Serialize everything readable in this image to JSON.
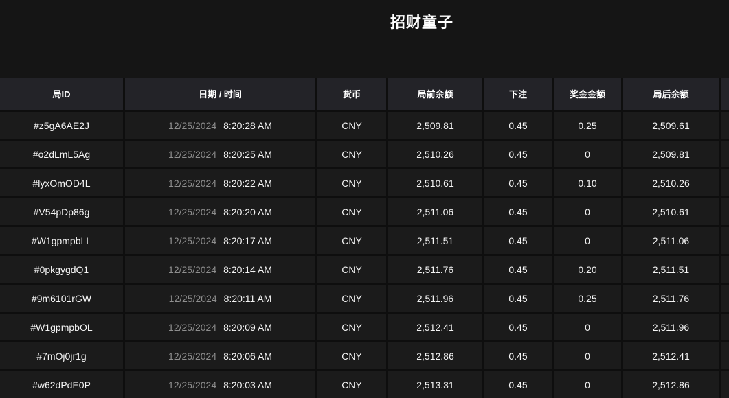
{
  "page": {
    "title": "招财童子"
  },
  "colors": {
    "page_background": "#151515",
    "header_cell_background": "#232328",
    "row_cell_background": "#1b1b1b",
    "cell_border": "#0e0e0e",
    "text_primary": "#f5f5f5",
    "text_date_muted": "#8f8f8f"
  },
  "table": {
    "headers": [
      {
        "label": "局ID"
      },
      {
        "label": "日期 / 时间"
      },
      {
        "label": "货币"
      },
      {
        "label": "局前余额"
      },
      {
        "label": "下注"
      },
      {
        "label": "奖金金额"
      },
      {
        "label": "局后余额"
      },
      {
        "label": ""
      }
    ],
    "rows": [
      {
        "id": "#z5gA6AE2J",
        "date": "12/25/2024",
        "time": "8:20:28 AM",
        "currency": "CNY",
        "balance_before": "2,509.81",
        "bet": "0.45",
        "prize": "0.25",
        "balance_after": "2,509.61"
      },
      {
        "id": "#o2dLmL5Ag",
        "date": "12/25/2024",
        "time": "8:20:25 AM",
        "currency": "CNY",
        "balance_before": "2,510.26",
        "bet": "0.45",
        "prize": "0",
        "balance_after": "2,509.81"
      },
      {
        "id": "#lyxOmOD4L",
        "date": "12/25/2024",
        "time": "8:20:22 AM",
        "currency": "CNY",
        "balance_before": "2,510.61",
        "bet": "0.45",
        "prize": "0.10",
        "balance_after": "2,510.26"
      },
      {
        "id": "#V54pDp86g",
        "date": "12/25/2024",
        "time": "8:20:20 AM",
        "currency": "CNY",
        "balance_before": "2,511.06",
        "bet": "0.45",
        "prize": "0",
        "balance_after": "2,510.61"
      },
      {
        "id": "#W1gpmpbLL",
        "date": "12/25/2024",
        "time": "8:20:17 AM",
        "currency": "CNY",
        "balance_before": "2,511.51",
        "bet": "0.45",
        "prize": "0",
        "balance_after": "2,511.06"
      },
      {
        "id": "#0pkgygdQ1",
        "date": "12/25/2024",
        "time": "8:20:14 AM",
        "currency": "CNY",
        "balance_before": "2,511.76",
        "bet": "0.45",
        "prize": "0.20",
        "balance_after": "2,511.51"
      },
      {
        "id": "#9m6101rGW",
        "date": "12/25/2024",
        "time": "8:20:11 AM",
        "currency": "CNY",
        "balance_before": "2,511.96",
        "bet": "0.45",
        "prize": "0.25",
        "balance_after": "2,511.76"
      },
      {
        "id": "#W1gpmpbOL",
        "date": "12/25/2024",
        "time": "8:20:09 AM",
        "currency": "CNY",
        "balance_before": "2,512.41",
        "bet": "0.45",
        "prize": "0",
        "balance_after": "2,511.96"
      },
      {
        "id": "#7mOj0jr1g",
        "date": "12/25/2024",
        "time": "8:20:06 AM",
        "currency": "CNY",
        "balance_before": "2,512.86",
        "bet": "0.45",
        "prize": "0",
        "balance_after": "2,512.41"
      },
      {
        "id": "#w62dPdE0P",
        "date": "12/25/2024",
        "time": "8:20:03 AM",
        "currency": "CNY",
        "balance_before": "2,513.31",
        "bet": "0.45",
        "prize": "0",
        "balance_after": "2,512.86"
      }
    ]
  }
}
